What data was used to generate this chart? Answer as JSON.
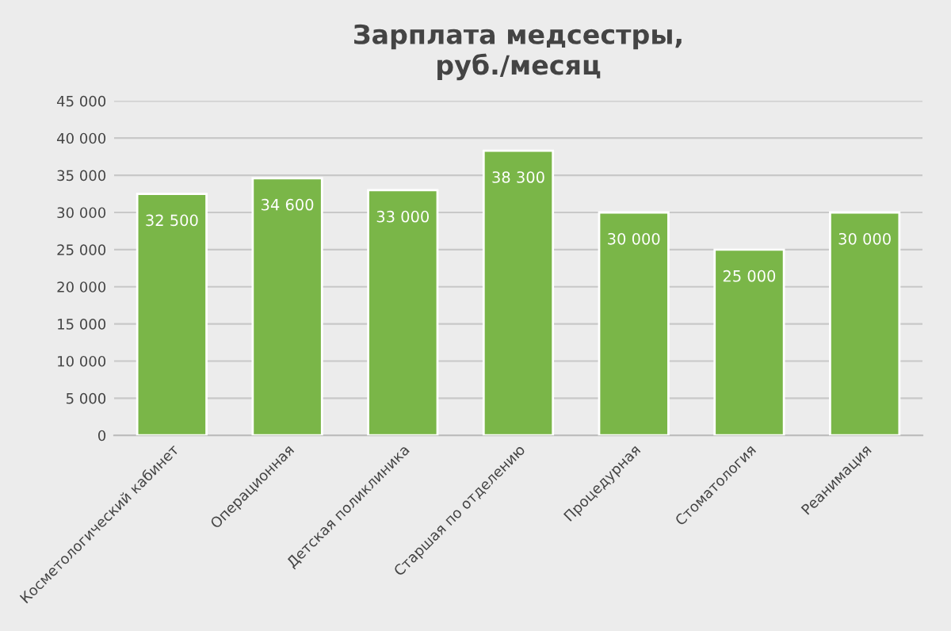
{
  "chart_data": {
    "type": "bar",
    "title": "Зарплата медсестры,\nруб./месяц",
    "categories": [
      "Косметологический кабинет",
      "Операционная",
      "Детская поликлиника",
      "Старшая по отделению",
      "Процедурная",
      "Стоматология",
      "Реанимация"
    ],
    "values": [
      32500,
      34600,
      33000,
      38300,
      30000,
      25000,
      30000
    ],
    "value_labels": [
      "32 500",
      "34 600",
      "33 000",
      "38 300",
      "30 000",
      "25 000",
      "30 000"
    ],
    "color": "#7ab648",
    "ylim": [
      0,
      45000
    ],
    "yticks": [
      {
        "value": 0,
        "label": "0"
      },
      {
        "value": 5000,
        "label": "5 000"
      },
      {
        "value": 10000,
        "label": "10 000"
      },
      {
        "value": 15000,
        "label": "15 000"
      },
      {
        "value": 20000,
        "label": "20 000"
      },
      {
        "value": 25000,
        "label": "25 000"
      },
      {
        "value": 30000,
        "label": "30 000"
      },
      {
        "value": 35000,
        "label": "35 000"
      },
      {
        "value": 40000,
        "label": "40 000"
      },
      {
        "value": 45000,
        "label": "45 000"
      }
    ],
    "grid": "y"
  }
}
